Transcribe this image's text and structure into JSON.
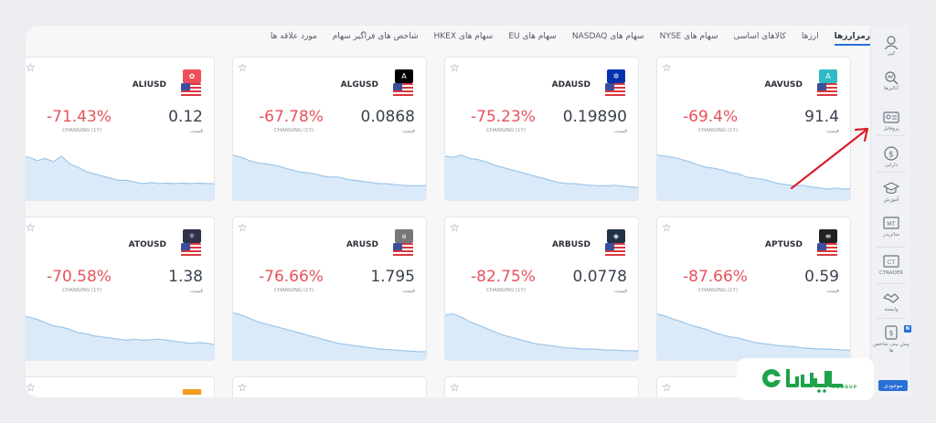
{
  "tabs": [
    {
      "label": "رمزارزها",
      "active": true
    },
    {
      "label": "ارزها"
    },
    {
      "label": "کالاهای اساسی"
    },
    {
      "label": "سهام های NYSE"
    },
    {
      "label": "سهام های NASDAQ"
    },
    {
      "label": "سهام های EU"
    },
    {
      "label": "سهام های HKEX"
    },
    {
      "label": "شاخص های فراگیر سهام"
    },
    {
      "label": "مورد علاقه ها"
    }
  ],
  "cards": [
    {
      "symbol": "AAVUSD",
      "price": "91.4",
      "price_label": "قیمت",
      "change": "-69.4%",
      "change_label": "CHANGING (1Y)",
      "logo_color": "#2ebac6",
      "logo_glyph": "A",
      "trend": [
        0.82,
        0.8,
        0.78,
        0.74,
        0.7,
        0.64,
        0.6,
        0.58,
        0.55,
        0.5,
        0.48,
        0.42,
        0.4,
        0.38,
        0.34,
        0.3,
        0.28,
        0.26,
        0.27,
        0.24,
        0.22,
        0.2,
        0.22,
        0.2,
        0.21
      ]
    },
    {
      "symbol": "ADAUSD",
      "price": "0.19890",
      "price_label": "قیمت",
      "change": "-75.23%",
      "change_label": "CHANGING (1Y)",
      "logo_color": "#0033ad",
      "logo_glyph": "✲",
      "trend": [
        0.8,
        0.78,
        0.82,
        0.76,
        0.74,
        0.7,
        0.64,
        0.6,
        0.56,
        0.52,
        0.48,
        0.44,
        0.4,
        0.36,
        0.32,
        0.3,
        0.3,
        0.28,
        0.27,
        0.26,
        0.26,
        0.27,
        0.25,
        0.24,
        0.22
      ]
    },
    {
      "symbol": "ALGUSD",
      "price": "0.0868",
      "price_label": "قیمت",
      "change": "-67.78%",
      "change_label": "CHANGING (1Y)",
      "logo_color": "#000000",
      "logo_glyph": "A",
      "trend": [
        0.82,
        0.78,
        0.72,
        0.68,
        0.66,
        0.64,
        0.6,
        0.56,
        0.52,
        0.5,
        0.48,
        0.44,
        0.42,
        0.42,
        0.38,
        0.36,
        0.34,
        0.32,
        0.3,
        0.3,
        0.28,
        0.27,
        0.26,
        0.26,
        0.27
      ]
    },
    {
      "symbol": "ALIUSD",
      "price": "0.12",
      "price_label": "قیمت",
      "change": "-71.43%",
      "change_label": "CHANGING (1Y)",
      "logo_color": "#f04e5b",
      "logo_glyph": "✿",
      "trend": [
        0.8,
        0.78,
        0.72,
        0.76,
        0.7,
        0.8,
        0.66,
        0.6,
        0.52,
        0.48,
        0.44,
        0.4,
        0.36,
        0.36,
        0.33,
        0.3,
        0.32,
        0.3,
        0.31,
        0.3,
        0.31,
        0.3,
        0.31,
        0.3,
        0.3
      ]
    },
    {
      "symbol": "APTUSD",
      "price": "0.59",
      "price_label": "قیمت",
      "change": "-87.66%",
      "change_label": "CHANGING (1Y)",
      "logo_color": "#222222",
      "logo_glyph": "≡",
      "trend": [
        0.84,
        0.8,
        0.74,
        0.7,
        0.64,
        0.6,
        0.56,
        0.5,
        0.46,
        0.42,
        0.4,
        0.36,
        0.32,
        0.3,
        0.28,
        0.26,
        0.25,
        0.24,
        0.22,
        0.21,
        0.2,
        0.2,
        0.19,
        0.18,
        0.18
      ]
    },
    {
      "symbol": "ARBUSD",
      "price": "0.0778",
      "price_label": "قیمت",
      "change": "-82.75%",
      "change_label": "CHANGING (1Y)",
      "logo_color": "#213147",
      "logo_glyph": "◈",
      "trend": [
        0.82,
        0.84,
        0.78,
        0.7,
        0.64,
        0.58,
        0.52,
        0.46,
        0.42,
        0.38,
        0.34,
        0.3,
        0.28,
        0.26,
        0.24,
        0.22,
        0.21,
        0.2,
        0.2,
        0.19,
        0.18,
        0.18,
        0.17,
        0.17,
        0.16
      ]
    },
    {
      "symbol": "ARUSD",
      "price": "1.795",
      "price_label": "قیمت",
      "change": "-76.66%",
      "change_label": "CHANGING (1Y)",
      "logo_color": "#777777",
      "logo_glyph": "a",
      "trend": [
        0.86,
        0.82,
        0.76,
        0.7,
        0.66,
        0.62,
        0.58,
        0.54,
        0.5,
        0.46,
        0.42,
        0.38,
        0.34,
        0.3,
        0.28,
        0.26,
        0.24,
        0.22,
        0.2,
        0.19,
        0.18,
        0.17,
        0.16,
        0.15,
        0.15
      ]
    },
    {
      "symbol": "ATOUSD",
      "price": "1.38",
      "price_label": "قیمت",
      "change": "-70.58%",
      "change_label": "CHANGING (1Y)",
      "logo_color": "#2e3148",
      "logo_glyph": "⚛",
      "trend": [
        0.82,
        0.78,
        0.74,
        0.68,
        0.62,
        0.6,
        0.56,
        0.5,
        0.48,
        0.44,
        0.42,
        0.4,
        0.38,
        0.36,
        0.38,
        0.36,
        0.37,
        0.38,
        0.36,
        0.34,
        0.32,
        0.3,
        0.32,
        0.3,
        0.28
      ]
    }
  ],
  "sidebar": [
    {
      "icon": "user-icon",
      "label": "کپی"
    },
    {
      "icon": "analytics-icon",
      "label": "آنالیزها"
    },
    {
      "icon": "portfolio-icon",
      "label": "پروفایل"
    },
    {
      "icon": "dollar-icon",
      "label": "دارایی"
    },
    {
      "icon": "education-icon",
      "label": "آموزش"
    },
    {
      "icon": "metatrader-icon",
      "label": "متاتریدر",
      "glyph": "MT"
    },
    {
      "icon": "ctrader-icon",
      "label": "CTRADER",
      "glyph": "CT"
    },
    {
      "icon": "handshake-icon",
      "label": "وابسته"
    },
    {
      "icon": "forecast-icon",
      "label": "پیش بینی شاخص ها",
      "badge": "N"
    }
  ],
  "sidebar_button": "موجودی",
  "watermark": {
    "text": "SOODUP"
  },
  "colors": {
    "accent": "#2a6fd8",
    "negative": "#e5535b",
    "chart_fill": "#daeaf8",
    "chart_line": "#9dc6ea",
    "annotation": "#d8222b"
  }
}
